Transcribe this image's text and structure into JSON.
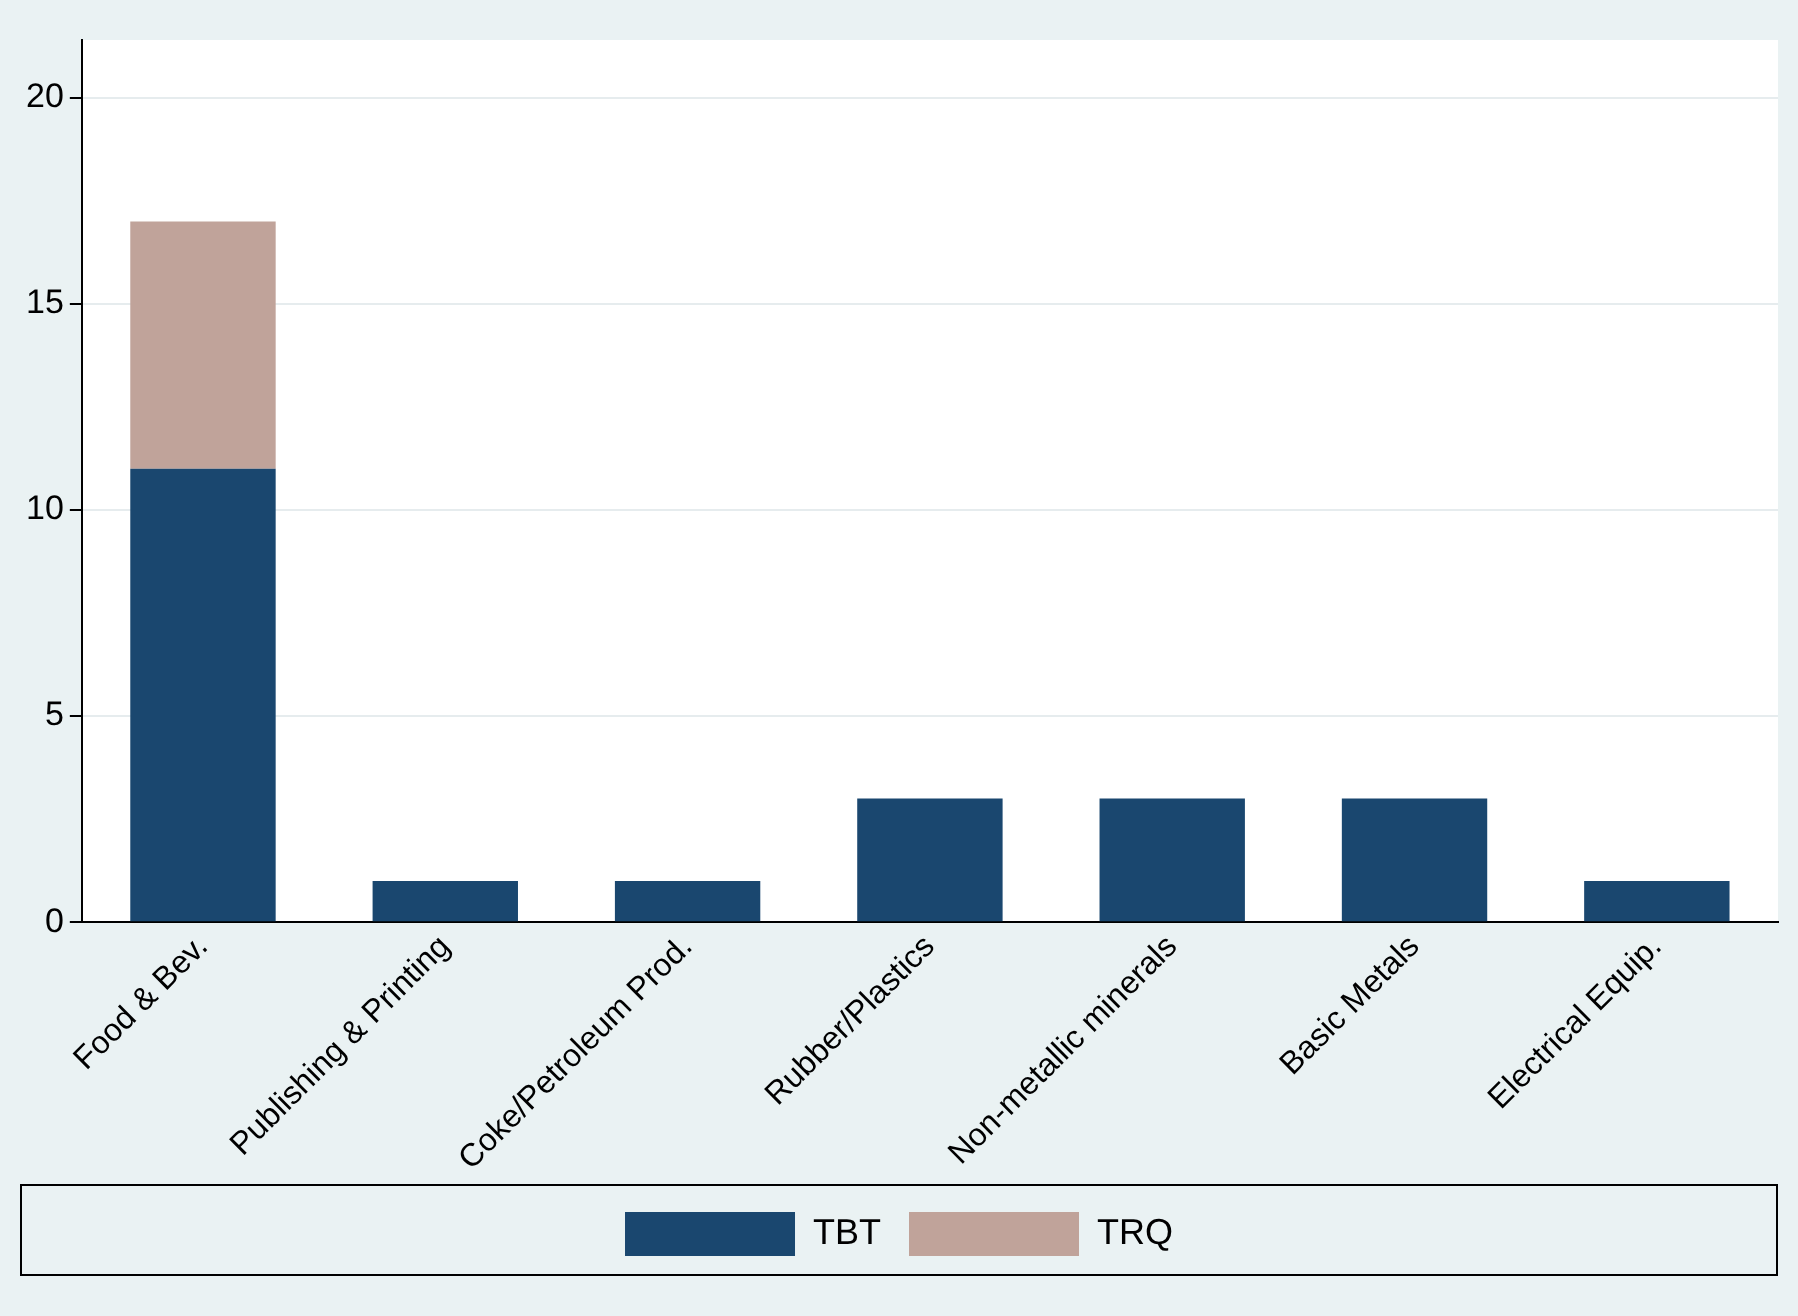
{
  "chart_data": {
    "type": "bar",
    "stacked": true,
    "categories": [
      "Food & Bev.",
      "Publishing & Printing",
      "Coke/Petroleum Prod.",
      "Rubber/Plastics",
      "Non-metallic minerals",
      "Basic Metals",
      "Electrical Equip."
    ],
    "series": [
      {
        "name": "TBT",
        "color": "#1a476f",
        "values": [
          11,
          1,
          1,
          3,
          3,
          3,
          1
        ]
      },
      {
        "name": "TRQ",
        "color": "#c0a39a",
        "values": [
          6,
          0,
          0,
          0,
          0,
          0,
          0
        ]
      }
    ],
    "ylim": [
      0,
      21.4
    ],
    "yticks": [
      0,
      5,
      10,
      15,
      20
    ],
    "grid": "y",
    "legend": "bottom"
  }
}
